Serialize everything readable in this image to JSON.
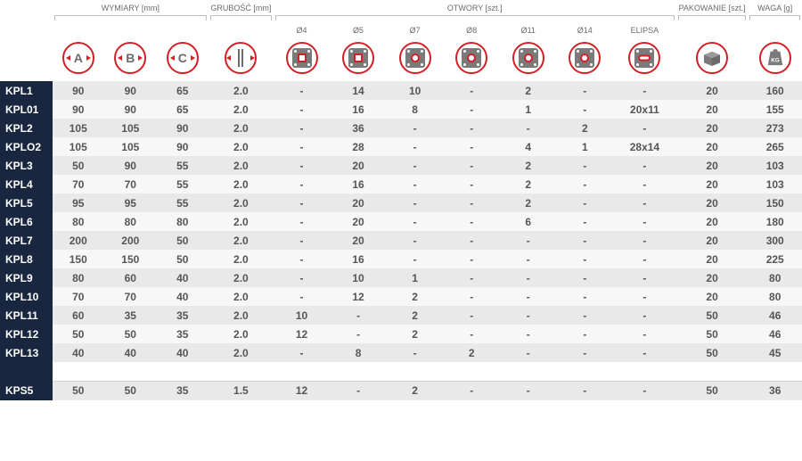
{
  "headers": {
    "group_wymiary": "WYMIARY [mm]",
    "group_grubosc": "GRUBOŚĆ [mm]",
    "group_otwory": "OTWORY [szt.]",
    "group_pakowanie": "PAKOWANIE [szt.]",
    "group_waga": "WAGA [g]",
    "dimA": "A",
    "dimB": "B",
    "dimC": "C",
    "o4": "Ø4",
    "o5": "Ø5",
    "o7": "Ø7",
    "o8": "Ø8",
    "o11": "Ø11",
    "o14": "Ø14",
    "elipsa": "ELIPSA"
  },
  "rows": [
    {
      "code": "KPL1",
      "A": "90",
      "B": "90",
      "C": "65",
      "thk": "2.0",
      "o4": "-",
      "o5": "14",
      "o7": "10",
      "o8": "-",
      "o11": "2",
      "o14": "-",
      "el": "-",
      "pack": "20",
      "waga": "160"
    },
    {
      "code": "KPL01",
      "A": "90",
      "B": "90",
      "C": "65",
      "thk": "2.0",
      "o4": "-",
      "o5": "16",
      "o7": "8",
      "o8": "-",
      "o11": "1",
      "o14": "-",
      "el": "20x11",
      "pack": "20",
      "waga": "155"
    },
    {
      "code": "KPL2",
      "A": "105",
      "B": "105",
      "C": "90",
      "thk": "2.0",
      "o4": "-",
      "o5": "36",
      "o7": "-",
      "o8": "-",
      "o11": "-",
      "o14": "2",
      "el": "-",
      "pack": "20",
      "waga": "273"
    },
    {
      "code": "KPLO2",
      "A": "105",
      "B": "105",
      "C": "90",
      "thk": "2.0",
      "o4": "-",
      "o5": "28",
      "o7": "-",
      "o8": "-",
      "o11": "4",
      "o14": "1",
      "el": "28x14",
      "pack": "20",
      "waga": "265"
    },
    {
      "code": "KPL3",
      "A": "50",
      "B": "90",
      "C": "55",
      "thk": "2.0",
      "o4": "-",
      "o5": "20",
      "o7": "-",
      "o8": "-",
      "o11": "2",
      "o14": "-",
      "el": "-",
      "pack": "20",
      "waga": "103"
    },
    {
      "code": "KPL4",
      "A": "70",
      "B": "70",
      "C": "55",
      "thk": "2.0",
      "o4": "-",
      "o5": "16",
      "o7": "-",
      "o8": "-",
      "o11": "2",
      "o14": "-",
      "el": "-",
      "pack": "20",
      "waga": "103"
    },
    {
      "code": "KPL5",
      "A": "95",
      "B": "95",
      "C": "55",
      "thk": "2.0",
      "o4": "-",
      "o5": "20",
      "o7": "-",
      "o8": "-",
      "o11": "2",
      "o14": "-",
      "el": "-",
      "pack": "20",
      "waga": "150"
    },
    {
      "code": "KPL6",
      "A": "80",
      "B": "80",
      "C": "80",
      "thk": "2.0",
      "o4": "-",
      "o5": "20",
      "o7": "-",
      "o8": "-",
      "o11": "6",
      "o14": "-",
      "el": "-",
      "pack": "20",
      "waga": "180"
    },
    {
      "code": "KPL7",
      "A": "200",
      "B": "200",
      "C": "50",
      "thk": "2.0",
      "o4": "-",
      "o5": "20",
      "o7": "-",
      "o8": "-",
      "o11": "-",
      "o14": "-",
      "el": "-",
      "pack": "20",
      "waga": "300"
    },
    {
      "code": "KPL8",
      "A": "150",
      "B": "150",
      "C": "50",
      "thk": "2.0",
      "o4": "-",
      "o5": "16",
      "o7": "-",
      "o8": "-",
      "o11": "-",
      "o14": "-",
      "el": "-",
      "pack": "20",
      "waga": "225"
    },
    {
      "code": "KPL9",
      "A": "80",
      "B": "60",
      "C": "40",
      "thk": "2.0",
      "o4": "-",
      "o5": "10",
      "o7": "1",
      "o8": "-",
      "o11": "-",
      "o14": "-",
      "el": "-",
      "pack": "20",
      "waga": "80"
    },
    {
      "code": "KPL10",
      "A": "70",
      "B": "70",
      "C": "40",
      "thk": "2.0",
      "o4": "-",
      "o5": "12",
      "o7": "2",
      "o8": "-",
      "o11": "-",
      "o14": "-",
      "el": "-",
      "pack": "20",
      "waga": "80"
    },
    {
      "code": "KPL11",
      "A": "60",
      "B": "35",
      "C": "35",
      "thk": "2.0",
      "o4": "10",
      "o5": "-",
      "o7": "2",
      "o8": "-",
      "o11": "-",
      "o14": "-",
      "el": "-",
      "pack": "50",
      "waga": "46"
    },
    {
      "code": "KPL12",
      "A": "50",
      "B": "50",
      "C": "35",
      "thk": "2.0",
      "o4": "12",
      "o5": "-",
      "o7": "2",
      "o8": "-",
      "o11": "-",
      "o14": "-",
      "el": "-",
      "pack": "50",
      "waga": "46"
    },
    {
      "code": "KPL13",
      "A": "40",
      "B": "40",
      "C": "40",
      "thk": "2.0",
      "o4": "-",
      "o5": "8",
      "o7": "-",
      "o8": "2",
      "o11": "-",
      "o14": "-",
      "el": "-",
      "pack": "50",
      "waga": "45"
    }
  ],
  "rows2": [
    {
      "code": "KPS5",
      "A": "50",
      "B": "50",
      "C": "35",
      "thk": "1.5",
      "o4": "12",
      "o5": "-",
      "o7": "2",
      "o8": "-",
      "o11": "-",
      "o14": "-",
      "el": "-",
      "pack": "50",
      "waga": "36"
    }
  ],
  "colors": {
    "accent": "#d32027",
    "header_bg": "#18263f",
    "row_odd": "#e9e9e9",
    "row_even": "#f7f7f7",
    "text": "#555555",
    "label": "#6b6b6b"
  }
}
